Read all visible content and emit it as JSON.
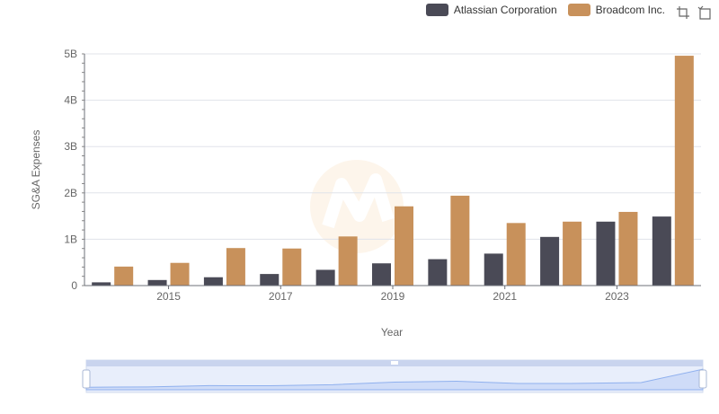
{
  "legend": [
    {
      "name": "Atlassian Corporation",
      "color": "#4a4a56"
    },
    {
      "name": "Broadcom Inc.",
      "color": "#c8915b"
    }
  ],
  "toolbox": {
    "zoom_icon": "zoom-icon",
    "restore_icon": "restore-icon"
  },
  "chart_data": {
    "type": "bar",
    "title": "",
    "xlabel": "Year",
    "ylabel": "SG&A Expenses",
    "categories": [
      "2014",
      "2015",
      "2016",
      "2017",
      "2018",
      "2019",
      "2020",
      "2021",
      "2022",
      "2023",
      "2024"
    ],
    "x_tick_labels": [
      "2015",
      "2017",
      "2019",
      "2021",
      "2023"
    ],
    "y_tick_labels": [
      "0",
      "1B",
      "2B",
      "3B",
      "4B",
      "5B"
    ],
    "ylim": [
      0,
      5000000000
    ],
    "grid": true,
    "legend_position": "top-right",
    "series": [
      {
        "name": "Atlassian Corporation",
        "color": "#4a4a56",
        "values": [
          70000000,
          120000000,
          180000000,
          250000000,
          340000000,
          480000000,
          570000000,
          690000000,
          1050000000,
          1380000000,
          1490000000
        ]
      },
      {
        "name": "Broadcom Inc.",
        "color": "#c8915b",
        "values": [
          410000000,
          490000000,
          810000000,
          800000000,
          1060000000,
          1710000000,
          1940000000,
          1350000000,
          1380000000,
          1590000000,
          4960000000
        ]
      }
    ]
  }
}
